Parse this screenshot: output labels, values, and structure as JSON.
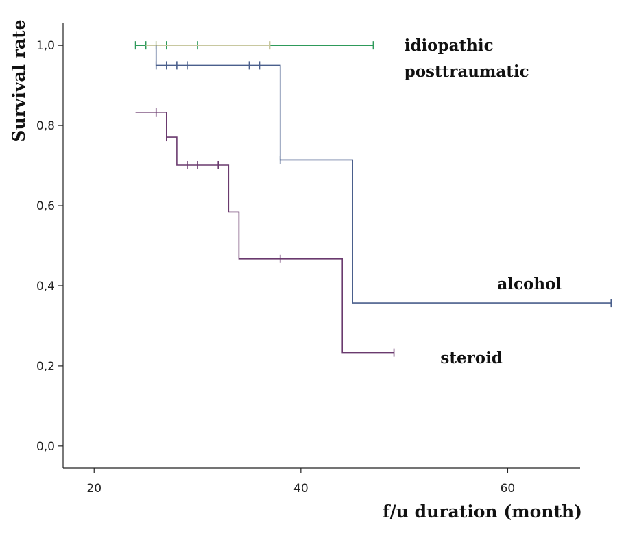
{
  "chart_data": {
    "type": "line",
    "title": "",
    "xlabel": "f/u duration (month)",
    "ylabel": "Survival rate",
    "xlim": [
      17,
      67
    ],
    "ylim": [
      -0.055,
      1.055
    ],
    "x_ticks": [
      20,
      40,
      60
    ],
    "x_tick_labels": [
      "20",
      "40",
      "60"
    ],
    "y_ticks": [
      0,
      0.2,
      0.4,
      0.6,
      0.8,
      1.0
    ],
    "y_tick_labels": [
      "0,0",
      "0,2",
      "0,4",
      "0,6",
      "0,8",
      "1,0"
    ],
    "grid": false,
    "legend": "none",
    "series": [
      {
        "name": "idiopathic",
        "color": "#2e9a5a",
        "step_x": [
          24,
          47
        ],
        "step_y": [
          1.0,
          1.0
        ],
        "censored": [
          [
            24,
            1.0
          ],
          [
            25,
            1.0
          ],
          [
            26,
            1.0
          ],
          [
            27,
            1.0
          ],
          [
            30,
            1.0
          ],
          [
            47,
            1.0
          ]
        ]
      },
      {
        "name": "posttraumatic",
        "color": "#c8c8a0",
        "step_x": [
          25,
          37
        ],
        "step_y": [
          1.0,
          1.0
        ],
        "censored": [
          [
            26,
            1.0
          ],
          [
            37,
            1.0
          ]
        ]
      },
      {
        "name": "alcohol",
        "color": "#4a5f8c",
        "step_x": [
          26,
          26,
          38,
          38,
          45,
          45,
          70
        ],
        "step_y": [
          1.0,
          0.95,
          0.95,
          0.714,
          0.714,
          0.357,
          0.357
        ],
        "censored": [
          [
            26,
            0.95
          ],
          [
            27,
            0.95
          ],
          [
            28,
            0.95
          ],
          [
            29,
            0.95
          ],
          [
            35,
            0.95
          ],
          [
            36,
            0.95
          ],
          [
            38,
            0.714
          ],
          [
            70,
            0.357
          ]
        ]
      },
      {
        "name": "steroid",
        "color": "#6a3a6e",
        "step_x": [
          24,
          27,
          27,
          28,
          28,
          33,
          33,
          34,
          34,
          44,
          44,
          49
        ],
        "step_y": [
          0.833,
          0.833,
          0.771,
          0.771,
          0.701,
          0.701,
          0.584,
          0.584,
          0.467,
          0.467,
          0.233,
          0.233
        ],
        "censored": [
          [
            26,
            0.833
          ],
          [
            27,
            0.771
          ],
          [
            29,
            0.701
          ],
          [
            30,
            0.701
          ],
          [
            32,
            0.701
          ],
          [
            38,
            0.467
          ],
          [
            49,
            0.233
          ]
        ]
      }
    ],
    "annotations": [
      {
        "text": "idiopathic",
        "x": 50,
        "y": 1.0
      },
      {
        "text": "posttraumatic",
        "x": 50,
        "y": 0.935
      },
      {
        "text": "alcohol",
        "x": 59,
        "y": 0.405
      },
      {
        "text": "steroid",
        "x": 53.5,
        "y": 0.22
      }
    ]
  }
}
